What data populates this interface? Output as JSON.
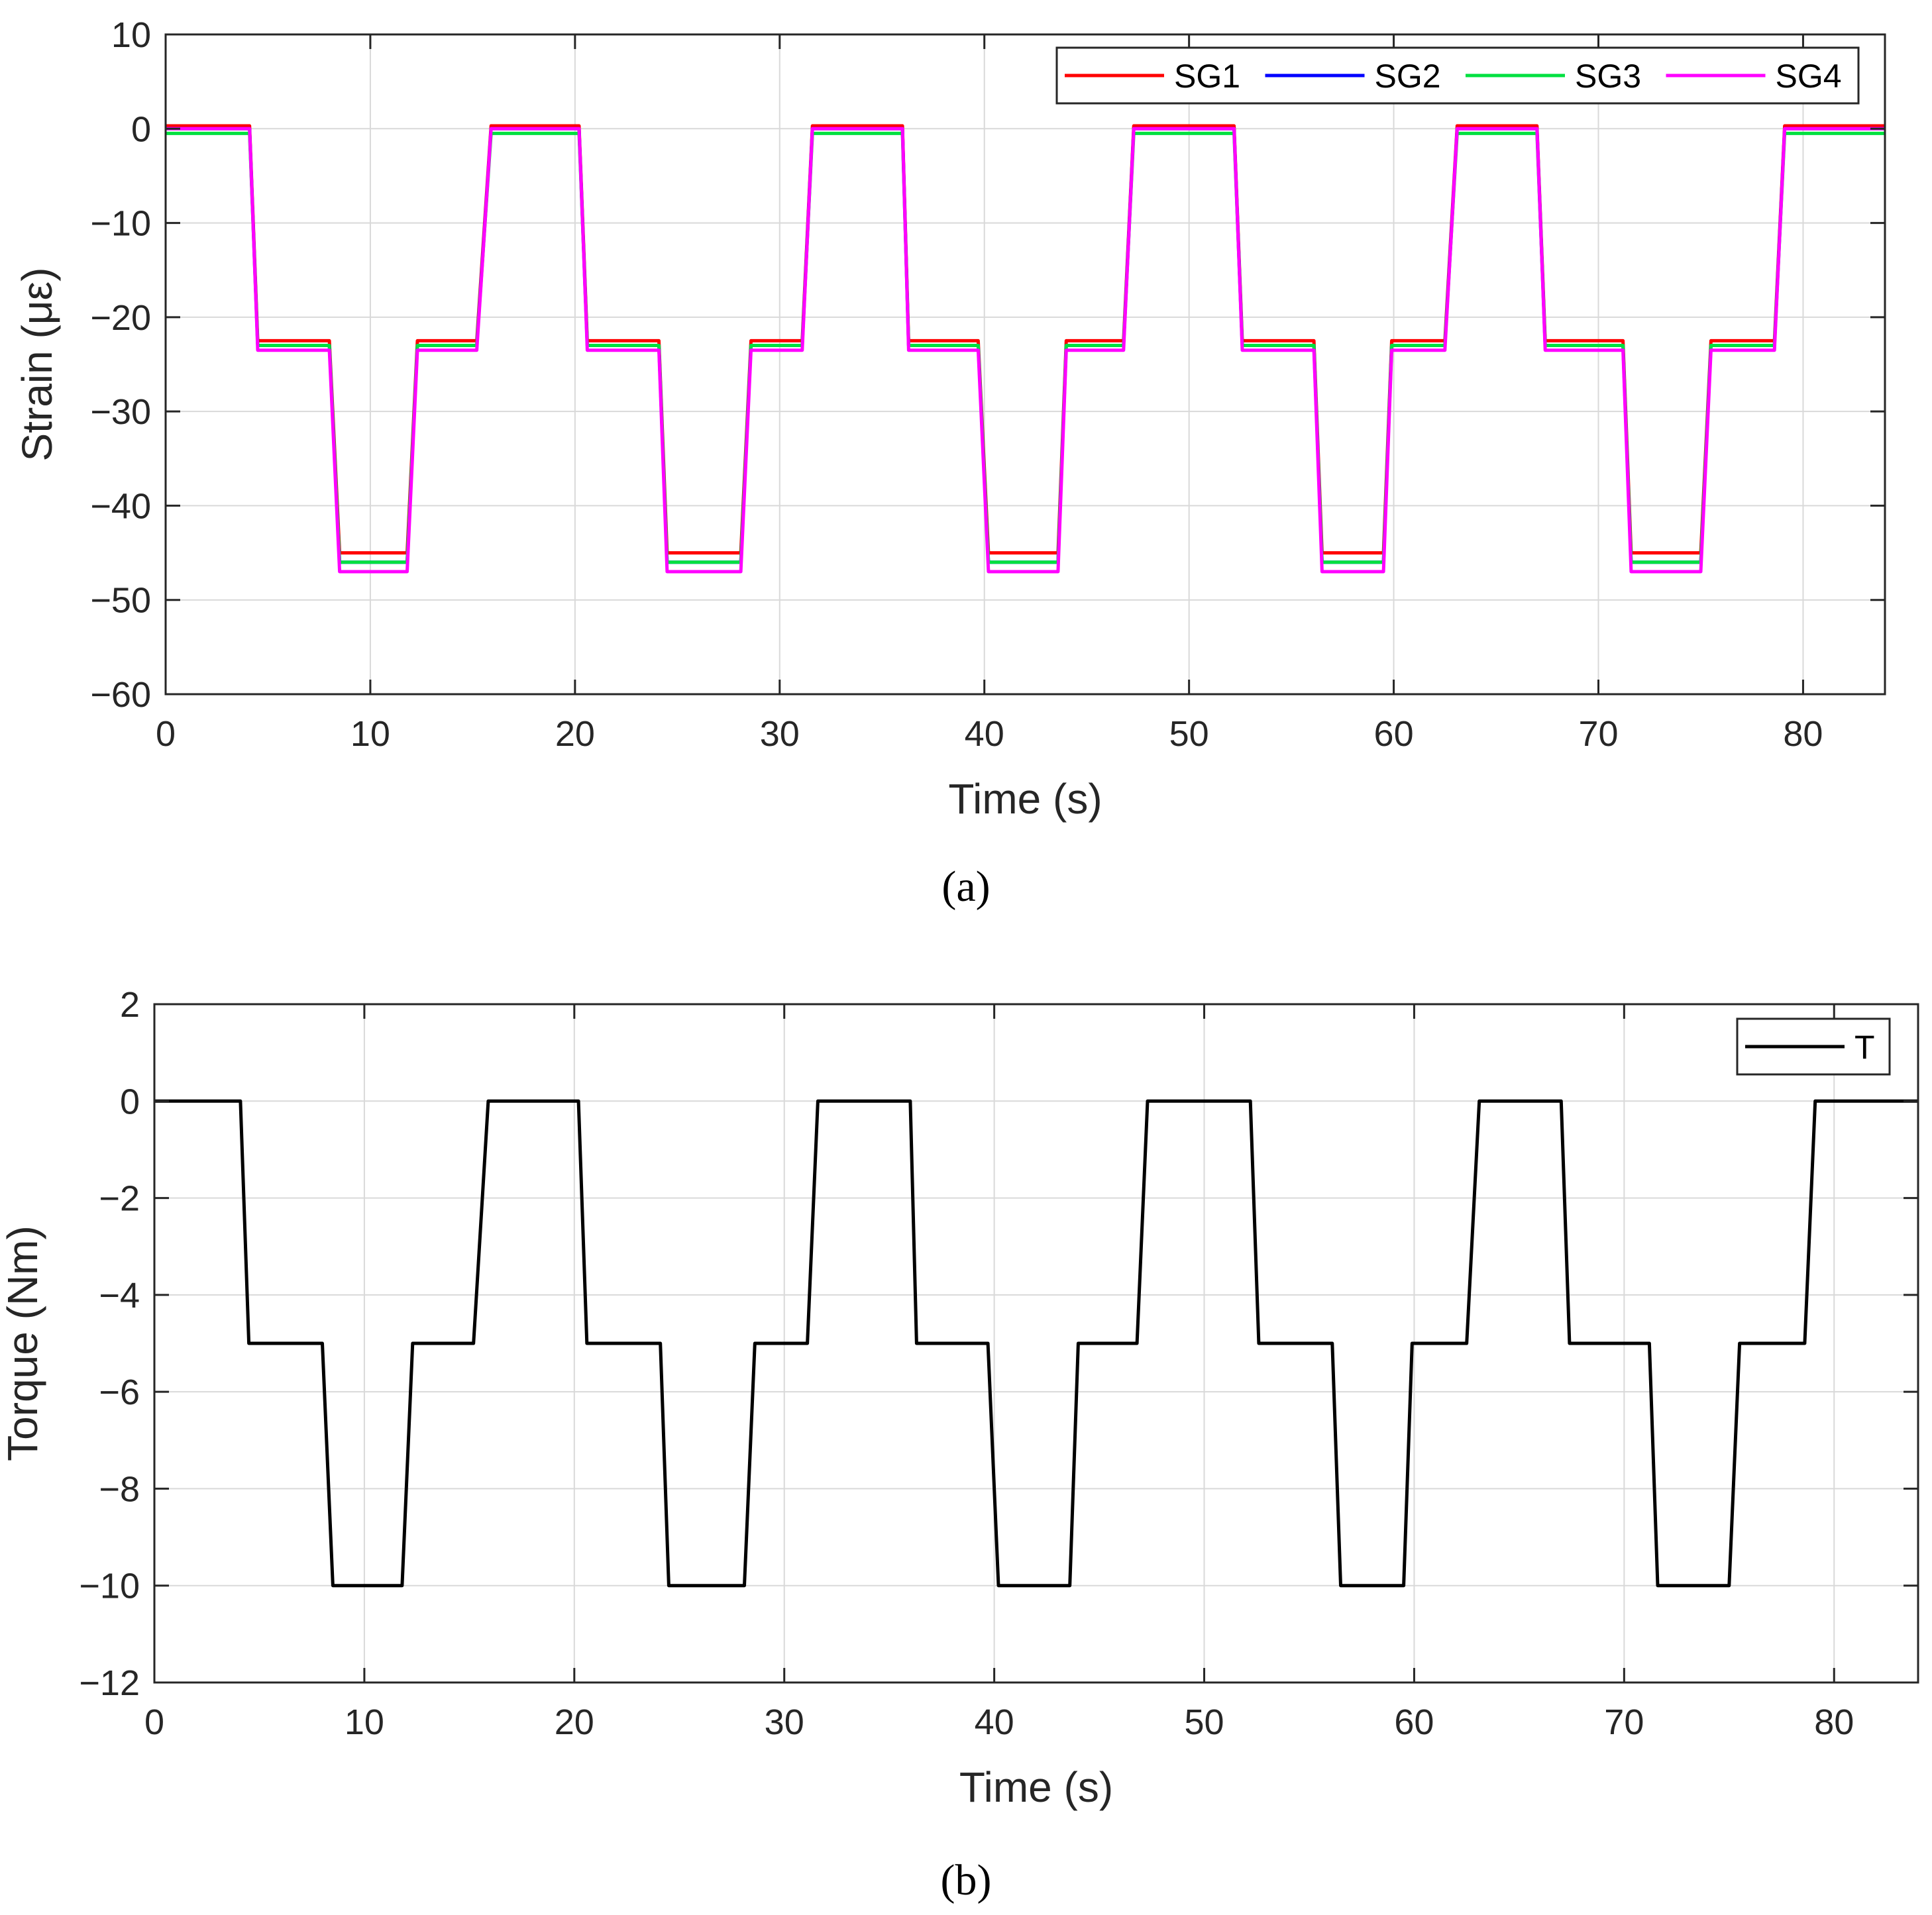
{
  "colors": {
    "SG1": "#ff0000",
    "SG2": "#0000ff",
    "SG3": "#00e040",
    "SG4": "#ff00ff",
    "T": "#000000"
  },
  "captions": {
    "a": "(a)",
    "b": "(b)"
  },
  "chart_data": [
    {
      "type": "line",
      "xlabel": "Time (s)",
      "ylabel": "Strain (με)",
      "xlim": [
        0,
        84
      ],
      "ylim": [
        -60,
        10
      ],
      "xticks": [
        0,
        10,
        20,
        30,
        40,
        50,
        60,
        70,
        80
      ],
      "yticks": [
        10,
        0,
        -10,
        -20,
        -30,
        -40,
        -50,
        -60
      ],
      "grid": true,
      "legend_position": "top-right",
      "breakpoints": [
        0,
        4.1,
        4.5,
        8.0,
        8.5,
        11.8,
        12.3,
        15.2,
        15.9,
        20.2,
        20.6,
        24.1,
        24.5,
        28.1,
        28.6,
        31.1,
        31.6,
        36.0,
        36.3,
        39.7,
        40.2,
        43.6,
        44.0,
        46.8,
        47.3,
        52.2,
        52.6,
        56.1,
        56.5,
        59.5,
        59.9,
        62.5,
        63.1,
        67.0,
        67.4,
        71.2,
        71.6,
        75.0,
        75.5,
        78.6,
        79.1,
        84.0
      ],
      "series": [
        {
          "name": "SG1",
          "values": [
            0.3,
            0.3,
            -22.5,
            -22.5,
            -45.0,
            -45.0,
            -22.5,
            -22.5,
            0.3,
            0.3,
            -22.5,
            -22.5,
            -45.0,
            -45.0,
            -22.5,
            -22.5,
            0.3,
            0.3,
            -22.5,
            -22.5,
            -45.0,
            -45.0,
            -22.5,
            -22.5,
            0.3,
            0.3,
            -22.5,
            -22.5,
            -45.0,
            -45.0,
            -22.5,
            -22.5,
            0.3,
            0.3,
            -22.5,
            -22.5,
            -45.0,
            -45.0,
            -22.5,
            -22.5,
            0.3,
            0.3
          ]
        },
        {
          "name": "SG2",
          "values": [
            0,
            0,
            -23.0,
            -23.0,
            -46.0,
            -46.0,
            -23.0,
            -23.0,
            0,
            0,
            -23.0,
            -23.0,
            -46.0,
            -46.0,
            -23.0,
            -23.0,
            0,
            0,
            -23.0,
            -23.0,
            -46.0,
            -46.0,
            -23.0,
            -23.0,
            0,
            0,
            -23.0,
            -23.0,
            -46.0,
            -46.0,
            -23.0,
            -23.0,
            0,
            0,
            -23.0,
            -23.0,
            -46.0,
            -46.0,
            -23.0,
            -23.0,
            0,
            0
          ]
        },
        {
          "name": "SG3",
          "values": [
            -0.5,
            -0.5,
            -23.0,
            -23.0,
            -46.0,
            -46.0,
            -23.0,
            -23.0,
            -0.5,
            -0.5,
            -23.0,
            -23.0,
            -46.0,
            -46.0,
            -23.0,
            -23.0,
            -0.5,
            -0.5,
            -23.0,
            -23.0,
            -46.0,
            -46.0,
            -23.0,
            -23.0,
            -0.5,
            -0.5,
            -23.0,
            -23.0,
            -46.0,
            -46.0,
            -23.0,
            -23.0,
            -0.5,
            -0.5,
            -23.0,
            -23.0,
            -46.0,
            -46.0,
            -23.0,
            -23.0,
            -0.5,
            -0.5
          ]
        },
        {
          "name": "SG4",
          "values": [
            0,
            0,
            -23.5,
            -23.5,
            -47.0,
            -47.0,
            -23.5,
            -23.5,
            0,
            0,
            -23.5,
            -23.5,
            -47.0,
            -47.0,
            -23.5,
            -23.5,
            0,
            0,
            -23.5,
            -23.5,
            -47.0,
            -47.0,
            -23.5,
            -23.5,
            0,
            0,
            -23.5,
            -23.5,
            -47.0,
            -47.0,
            -23.5,
            -23.5,
            0,
            0,
            -23.5,
            -23.5,
            -47.0,
            -47.0,
            -23.5,
            -23.5,
            0,
            0
          ]
        }
      ]
    },
    {
      "type": "line",
      "xlabel": "Time (s)",
      "ylabel": "Torque (Nm)",
      "xlim": [
        0,
        84
      ],
      "ylim": [
        -12,
        2
      ],
      "xticks": [
        0,
        10,
        20,
        30,
        40,
        50,
        60,
        70,
        80
      ],
      "yticks": [
        2,
        0,
        -2,
        -4,
        -6,
        -8,
        -10,
        -12
      ],
      "grid": true,
      "legend_position": "top-right",
      "breakpoints": [
        0,
        4.1,
        4.5,
        8.0,
        8.5,
        11.8,
        12.3,
        15.2,
        15.9,
        20.2,
        20.6,
        24.1,
        24.5,
        28.1,
        28.6,
        31.1,
        31.6,
        36.0,
        36.3,
        39.7,
        40.2,
        43.6,
        44.0,
        46.8,
        47.3,
        52.2,
        52.6,
        56.1,
        56.5,
        59.5,
        59.9,
        62.5,
        63.1,
        67.0,
        67.4,
        71.2,
        71.6,
        75.0,
        75.5,
        78.6,
        79.1,
        84.0
      ],
      "series": [
        {
          "name": "T",
          "values": [
            0,
            0,
            -5.0,
            -5.0,
            -10.0,
            -10.0,
            -5.0,
            -5.0,
            0,
            0,
            -5.0,
            -5.0,
            -10.0,
            -10.0,
            -5.0,
            -5.0,
            0,
            0,
            -5.0,
            -5.0,
            -10.0,
            -10.0,
            -5.0,
            -5.0,
            0,
            0,
            -5.0,
            -5.0,
            -10.0,
            -10.0,
            -5.0,
            -5.0,
            0,
            0,
            -5.0,
            -5.0,
            -10.0,
            -10.0,
            -5.0,
            -5.0,
            0,
            0
          ]
        }
      ]
    }
  ]
}
